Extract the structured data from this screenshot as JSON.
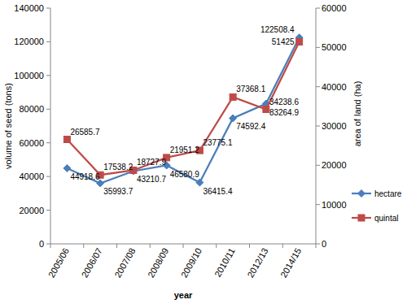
{
  "chart_data": {
    "type": "line",
    "xlabel": "year",
    "ylabel": "volume of seed (tons)",
    "y2label": "area of land (ha)",
    "categories": [
      "2005/06",
      "2006/07",
      "2007/08",
      "2008/09",
      "2009/10",
      "2010/11",
      "2012/13",
      "2014/15"
    ],
    "series": [
      {
        "name": "hectare",
        "color": "#4a7ebb",
        "marker": "diamond",
        "values": [
          44918.6,
          35993.7,
          43210.7,
          46580.9,
          36415.4,
          74592.4,
          83264.9,
          122508.4
        ]
      },
      {
        "name": "quintal",
        "color": "#be4b48",
        "marker": "square",
        "axis": "y2",
        "values": [
          26585.7,
          17538.2,
          18727.9,
          21951.2,
          23775.1,
          37368.1,
          34238.6,
          51425
        ]
      }
    ],
    "ylim": [
      0,
      140000
    ],
    "yticks": [
      0,
      20000,
      40000,
      60000,
      80000,
      100000,
      120000,
      140000
    ],
    "y2lim": [
      0,
      60000
    ],
    "y2ticks": [
      0,
      10000,
      20000,
      30000,
      40000,
      50000,
      60000
    ],
    "grid": false,
    "legend": "right",
    "data_labels": true
  }
}
